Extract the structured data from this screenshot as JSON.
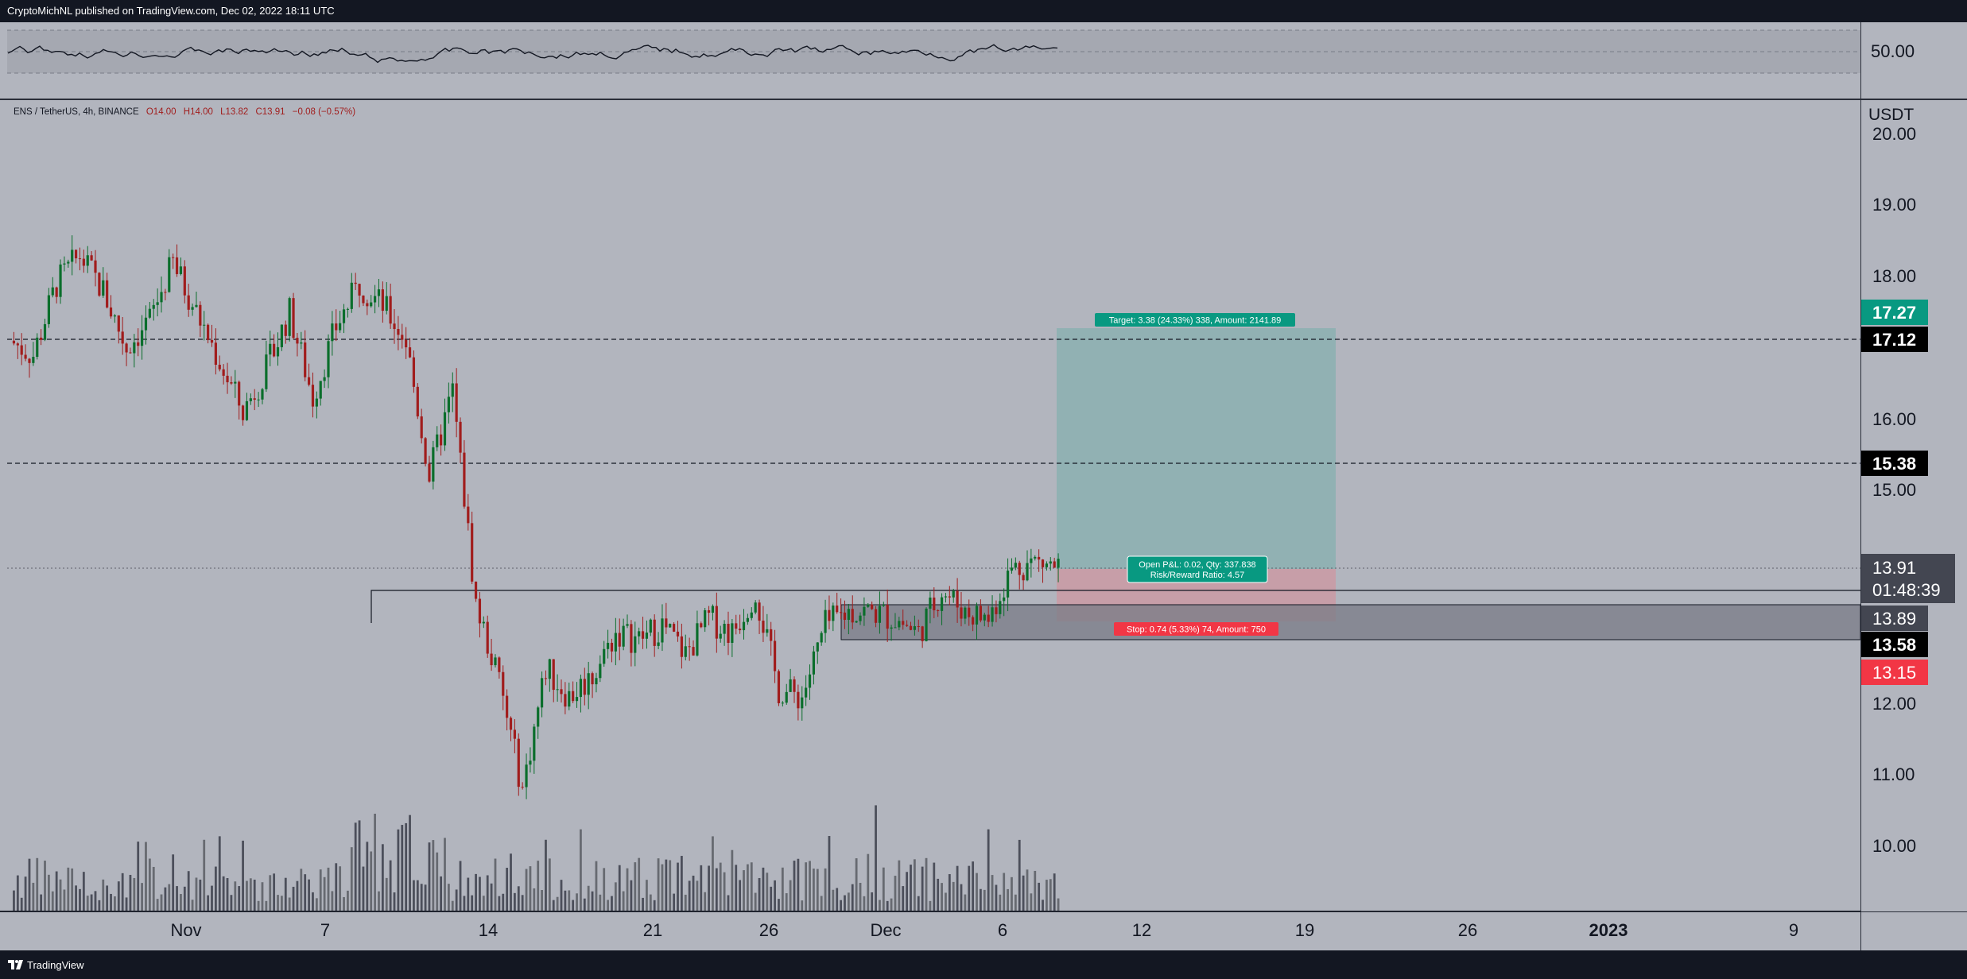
{
  "header": {
    "published_text": "CryptoMichNL published on TradingView.com, Dec 02, 2022 18:11 UTC"
  },
  "footer": {
    "brand": "TradingView"
  },
  "symbol": {
    "name": "ENS / TetherUS, 4h, BINANCE",
    "open": "O14.00",
    "high": "H14.00",
    "low": "L13.82",
    "close": "C13.91",
    "change": "−0.08 (−0.57%)"
  },
  "currency": "USDT",
  "oscillator": {
    "level_label": "50.00"
  },
  "price_axis": {
    "ticks": [
      "20.00",
      "19.00",
      "18.00",
      "16.00",
      "15.00",
      "12.00",
      "11.00",
      "10.00"
    ],
    "badges": {
      "target": "17.27",
      "line_upper": "17.12",
      "line_mid": "15.38",
      "last": "13.91",
      "countdown": "01:48:39",
      "zone_top": "13.89",
      "zone_bottom": "13.58",
      "stop": "13.15"
    }
  },
  "time_axis": [
    "Nov",
    "7",
    "14",
    "21",
    "26",
    "Dec",
    "6",
    "12",
    "19",
    "26",
    "2023",
    "9"
  ],
  "position": {
    "target_label": "Target: 3.38 (24.33%) 338, Amount: 2141.89",
    "open_label_1": "Open P&L: 0.02, Qty: 337.838",
    "open_label_2": "Risk/Reward Ratio: 4.57",
    "stop_label": "Stop: 0.74 (5.33%) 74, Amount: 750"
  },
  "colors": {
    "background": "#b2b5be",
    "bull": "#0b6e2c",
    "bear": "#a11d1d",
    "target_badge": "#089981",
    "stop_badge": "#f23645",
    "dark_badge": "#000000"
  },
  "chart_data": {
    "type": "candlestick",
    "title": "ENS / TetherUS, 4h, BINANCE",
    "x_start": "2022-10-25",
    "x_end": "2023-01-12",
    "y_range": [
      9.2,
      20.3
    ],
    "log_scale": false,
    "grid": false,
    "horizontal_levels": [
      17.12,
      15.38,
      13.91
    ],
    "zone": [
      13.58,
      13.89
    ],
    "long_position": {
      "entry": 13.89,
      "target": 17.27,
      "stop": 13.15
    },
    "price_points": [
      [
        "2022-10-25",
        17.1
      ],
      [
        "2022-10-26",
        16.9
      ],
      [
        "2022-10-27",
        17.9
      ],
      [
        "2022-10-28",
        18.3
      ],
      [
        "2022-10-29",
        17.8
      ],
      [
        "2022-10-30",
        17.0
      ],
      [
        "2022-10-31",
        17.4
      ],
      [
        "2022-11-01",
        18.2
      ],
      [
        "2022-11-02",
        17.5
      ],
      [
        "2022-11-03",
        16.8
      ],
      [
        "2022-11-04",
        16.1
      ],
      [
        "2022-11-05",
        16.7
      ],
      [
        "2022-11-06",
        17.5
      ],
      [
        "2022-11-07",
        16.3
      ],
      [
        "2022-11-08",
        17.3
      ],
      [
        "2022-11-09",
        17.9
      ],
      [
        "2022-11-10",
        17.6
      ],
      [
        "2022-11-11",
        17.1
      ],
      [
        "2022-11-12",
        15.2
      ],
      [
        "2022-11-13",
        16.4
      ],
      [
        "2022-11-14",
        13.4
      ],
      [
        "2022-11-15",
        12.3
      ],
      [
        "2022-11-16",
        10.8
      ],
      [
        "2022-11-17",
        12.5
      ],
      [
        "2022-11-18",
        12.1
      ],
      [
        "2022-11-19",
        12.4
      ],
      [
        "2022-11-20",
        13.0
      ],
      [
        "2022-11-21",
        12.9
      ],
      [
        "2022-11-22",
        13.1
      ],
      [
        "2022-11-23",
        12.7
      ],
      [
        "2022-11-24",
        13.2
      ],
      [
        "2022-11-25",
        13.0
      ],
      [
        "2022-11-26",
        13.6
      ],
      [
        "2022-11-27",
        12.2
      ],
      [
        "2022-11-28",
        12.1
      ],
      [
        "2022-11-29",
        13.1
      ],
      [
        "2022-11-30",
        13.3
      ],
      [
        "2022-12-01",
        13.3
      ],
      [
        "2022-12-02",
        13.2
      ],
      [
        "2022-12-03",
        13.0
      ],
      [
        "2022-12-04",
        13.6
      ],
      [
        "2022-12-05",
        13.3
      ],
      [
        "2022-12-06",
        13.2
      ],
      [
        "2022-12-07",
        13.9
      ],
      [
        "2022-12-08",
        14.0
      ],
      [
        "2022-12-09",
        13.91
      ]
    ]
  }
}
